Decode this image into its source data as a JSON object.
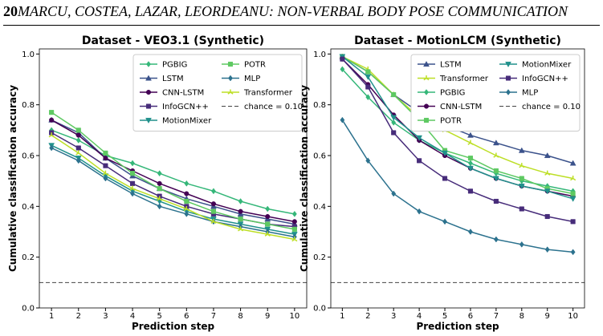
{
  "header": {
    "page_number": "20",
    "running_title": "MARCU, COSTEA, LAZAR, LEORDEANU: NON-VERBAL BODY POSE COMMUNICATION"
  },
  "chart_data": [
    {
      "type": "line",
      "title": "Dataset - VEO3.1 (Synthetic)",
      "xlabel": "Prediction step",
      "ylabel": "Cumulative classification accuracy",
      "x": [
        1,
        2,
        3,
        4,
        5,
        6,
        7,
        8,
        9,
        10
      ],
      "xlim": [
        0.55,
        10.45
      ],
      "xticks": [
        1,
        2,
        3,
        4,
        5,
        6,
        7,
        8,
        9,
        10
      ],
      "ylim": [
        0,
        1.02
      ],
      "yticks": [
        {
          "value": 0,
          "label": "0.0"
        },
        0.2,
        0.4,
        0.6,
        0.8,
        {
          "value": 1,
          "label": "1.0"
        }
      ],
      "legend_columns": 2,
      "series": [
        {
          "name": "PGBIG",
          "color": "#35b779",
          "marker": "diamond",
          "values": [
            0.7,
            0.66,
            0.6,
            0.57,
            0.53,
            0.49,
            0.46,
            0.42,
            0.39,
            0.37
          ]
        },
        {
          "name": "LSTM",
          "color": "#3b528b",
          "marker": "triangle",
          "values": [
            0.74,
            0.69,
            0.59,
            0.52,
            0.47,
            0.43,
            0.4,
            0.37,
            0.35,
            0.33
          ]
        },
        {
          "name": "CNN-LSTM",
          "color": "#440154",
          "marker": "circle",
          "values": [
            0.74,
            0.68,
            0.59,
            0.54,
            0.49,
            0.45,
            0.41,
            0.38,
            0.36,
            0.34
          ]
        },
        {
          "name": "InfoGCN++",
          "color": "#472c7a",
          "marker": "square",
          "values": [
            0.69,
            0.63,
            0.56,
            0.49,
            0.44,
            0.4,
            0.37,
            0.35,
            0.33,
            0.32
          ]
        },
        {
          "name": "MotionMixer",
          "color": "#21918c",
          "marker": "triangle-down",
          "values": [
            0.64,
            0.59,
            0.52,
            0.46,
            0.42,
            0.38,
            0.35,
            0.33,
            0.31,
            0.29
          ]
        },
        {
          "name": "POTR",
          "color": "#5ec962",
          "marker": "square",
          "values": [
            0.77,
            0.7,
            0.61,
            0.53,
            0.47,
            0.42,
            0.38,
            0.35,
            0.33,
            0.31
          ]
        },
        {
          "name": "MLP",
          "color": "#2c728e",
          "marker": "diamond",
          "values": [
            0.63,
            0.58,
            0.51,
            0.45,
            0.4,
            0.37,
            0.34,
            0.32,
            0.3,
            0.28
          ]
        },
        {
          "name": "Transformer",
          "color": "#bddf26",
          "marker": "tri",
          "values": [
            0.68,
            0.61,
            0.53,
            0.47,
            0.43,
            0.39,
            0.34,
            0.31,
            0.29,
            0.27
          ]
        }
      ],
      "reference": {
        "label": "chance = 0.10",
        "value": 0.1,
        "color": "#444444"
      }
    },
    {
      "type": "line",
      "title": "Dataset - MotionLCM (Synthetic)",
      "xlabel": "Prediction step",
      "ylabel": "Cumulative classification accuracy",
      "x": [
        1,
        2,
        3,
        4,
        5,
        6,
        7,
        8,
        9,
        10
      ],
      "xlim": [
        0.55,
        10.45
      ],
      "xticks": [
        1,
        2,
        3,
        4,
        5,
        6,
        7,
        8,
        9,
        10
      ],
      "ylim": [
        0,
        1.02
      ],
      "yticks": [
        {
          "value": 0,
          "label": "0.0"
        },
        0.2,
        0.4,
        0.6,
        0.8,
        {
          "value": 1,
          "label": "1.0"
        }
      ],
      "legend_columns": 2,
      "series": [
        {
          "name": "LSTM",
          "color": "#3b528b",
          "marker": "triangle",
          "values": [
            0.99,
            0.93,
            0.84,
            0.77,
            0.72,
            0.68,
            0.65,
            0.62,
            0.6,
            0.57
          ]
        },
        {
          "name": "Transformer",
          "color": "#bddf26",
          "marker": "tri",
          "values": [
            0.99,
            0.94,
            0.84,
            0.75,
            0.7,
            0.65,
            0.6,
            0.56,
            0.53,
            0.51
          ]
        },
        {
          "name": "PGBIG",
          "color": "#35b779",
          "marker": "diamond",
          "values": [
            0.94,
            0.83,
            0.73,
            0.66,
            0.61,
            0.57,
            0.53,
            0.5,
            0.48,
            0.46
          ]
        },
        {
          "name": "CNN-LSTM",
          "color": "#440154",
          "marker": "circle",
          "values": [
            0.98,
            0.88,
            0.76,
            0.66,
            0.6,
            0.55,
            0.51,
            0.48,
            0.46,
            0.44
          ]
        },
        {
          "name": "POTR",
          "color": "#5ec962",
          "marker": "square",
          "values": [
            0.99,
            0.93,
            0.84,
            0.74,
            0.62,
            0.59,
            0.54,
            0.51,
            0.47,
            0.45
          ]
        },
        {
          "name": "MotionMixer",
          "color": "#21918c",
          "marker": "triangle-down",
          "values": [
            0.99,
            0.91,
            0.75,
            0.67,
            0.61,
            0.55,
            0.51,
            0.48,
            0.46,
            0.43
          ]
        },
        {
          "name": "InfoGCN++",
          "color": "#472c7a",
          "marker": "square",
          "values": [
            0.98,
            0.87,
            0.69,
            0.58,
            0.51,
            0.46,
            0.42,
            0.39,
            0.36,
            0.34
          ]
        },
        {
          "name": "MLP",
          "color": "#2c728e",
          "marker": "diamond",
          "values": [
            0.74,
            0.58,
            0.45,
            0.38,
            0.34,
            0.3,
            0.27,
            0.25,
            0.23,
            0.22
          ]
        }
      ],
      "reference": {
        "label": "chance = 0.10",
        "value": 0.1,
        "color": "#444444"
      }
    }
  ]
}
